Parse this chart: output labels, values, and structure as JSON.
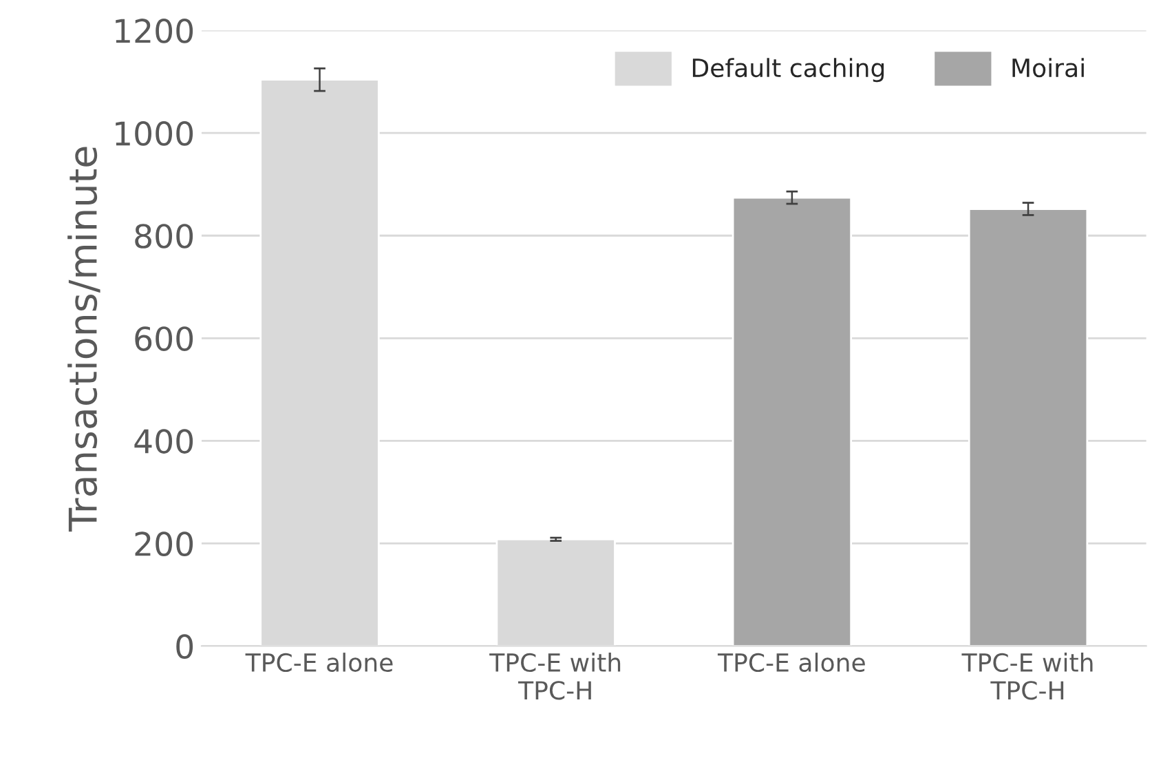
{
  "chart_data": {
    "type": "bar",
    "ylabel": "Transactions/minute",
    "categories": [
      "TPC-E alone",
      "TPC-E with\nTPC-H",
      "TPC-E alone",
      "TPC-E with\nTPC-H"
    ],
    "series": [
      {
        "name": "Default caching",
        "color": "#d9d9d9",
        "values": [
          1104,
          208,
          null,
          null
        ],
        "errors": [
          22,
          3,
          null,
          null
        ]
      },
      {
        "name": "Moirai",
        "color": "#a6a6a6",
        "values": [
          null,
          null,
          874,
          852
        ],
        "errors": [
          null,
          null,
          12,
          12
        ]
      }
    ],
    "ylim": [
      0,
      1200
    ],
    "yticks": [
      0,
      200,
      400,
      600,
      800,
      1000,
      1200
    ],
    "grid": "y",
    "legend": "top right"
  }
}
